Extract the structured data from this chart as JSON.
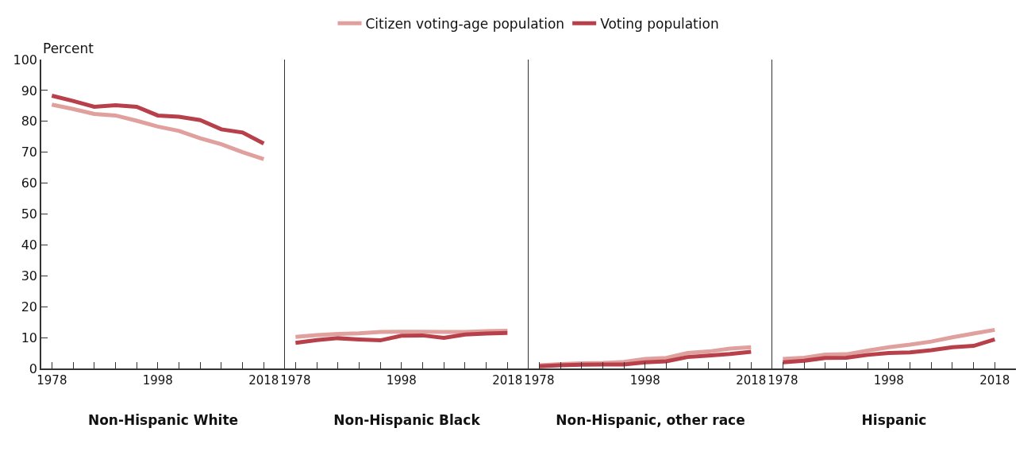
{
  "chart_data": [
    {
      "type": "line",
      "xlabel": "Non-Hispanic White",
      "ylabel": "Percent",
      "x": [
        1978,
        1982,
        1986,
        1990,
        1994,
        1998,
        2002,
        2006,
        2010,
        2014,
        2018
      ],
      "xlim": [
        1976,
        2022
      ],
      "xticks": [
        1978,
        {
          "value": 1982,
          "label": null
        },
        {
          "value": 1986,
          "label": null
        },
        {
          "value": 1990,
          "label": null
        },
        {
          "value": 1994,
          "label": null
        },
        1998,
        {
          "value": 2002,
          "label": null
        },
        {
          "value": 2006,
          "label": null
        },
        {
          "value": 2010,
          "label": null
        },
        {
          "value": 2014,
          "label": null
        },
        2018
      ],
      "ylim": [
        0,
        100
      ],
      "yticks": [
        0,
        10,
        20,
        30,
        40,
        50,
        60,
        70,
        80,
        90,
        100
      ],
      "legend": "top",
      "line_style": "solid",
      "marker": "none",
      "series": [
        {
          "name": "Citizen voting-age population",
          "color": "#e0a09e",
          "values": [
            85.4,
            84.0,
            82.4,
            81.9,
            80.2,
            78.3,
            76.9,
            74.5,
            72.6,
            70.0,
            67.8
          ]
        },
        {
          "name": "Voting population",
          "color": "#b8404a",
          "values": [
            88.3,
            86.6,
            84.7,
            85.2,
            84.7,
            81.9,
            81.5,
            80.4,
            77.4,
            76.4,
            72.8
          ]
        }
      ]
    },
    {
      "type": "line",
      "xlabel": "Non-Hispanic Black",
      "x": [
        1978,
        1982,
        1986,
        1990,
        1994,
        1998,
        2002,
        2006,
        2010,
        2014,
        2018
      ],
      "xlim": [
        1976,
        2022
      ],
      "xticks": [
        1978,
        {
          "value": 1982,
          "label": null
        },
        {
          "value": 1986,
          "label": null
        },
        {
          "value": 1990,
          "label": null
        },
        {
          "value": 1994,
          "label": null
        },
        1998,
        {
          "value": 2002,
          "label": null
        },
        {
          "value": 2006,
          "label": null
        },
        {
          "value": 2010,
          "label": null
        },
        {
          "value": 2014,
          "label": null
        },
        2018
      ],
      "ylim": [
        0,
        100
      ],
      "tick_labels": "x",
      "legend": "top",
      "line_style": "solid",
      "marker": "none",
      "series": [
        {
          "name": "Citizen voting-age population",
          "color": "#e0a09e",
          "values": [
            10.2,
            10.8,
            11.2,
            11.4,
            11.8,
            11.9,
            11.9,
            11.8,
            11.8,
            12.1,
            12.2
          ]
        },
        {
          "name": "Voting population",
          "color": "#b8404a",
          "values": [
            8.3,
            9.2,
            9.8,
            9.4,
            9.1,
            10.6,
            10.7,
            9.9,
            11.0,
            11.3,
            11.5
          ]
        }
      ]
    },
    {
      "type": "line",
      "xlabel": "Non-Hispanic, other race",
      "x": [
        1978,
        1982,
        1986,
        1990,
        1994,
        1998,
        2002,
        2006,
        2010,
        2014,
        2018
      ],
      "xlim": [
        1976,
        2022
      ],
      "xticks": [
        1978,
        {
          "value": 1982,
          "label": null
        },
        {
          "value": 1986,
          "label": null
        },
        {
          "value": 1990,
          "label": null
        },
        {
          "value": 1994,
          "label": null
        },
        1998,
        {
          "value": 2002,
          "label": null
        },
        {
          "value": 2006,
          "label": null
        },
        {
          "value": 2010,
          "label": null
        },
        {
          "value": 2014,
          "label": null
        },
        2018
      ],
      "ylim": [
        0,
        100
      ],
      "tick_labels": "x",
      "legend": "top",
      "line_style": "solid",
      "marker": "none",
      "series": [
        {
          "name": "Citizen voting-age population",
          "color": "#e0a09e",
          "values": [
            1.0,
            1.4,
            1.7,
            1.8,
            2.1,
            3.1,
            3.4,
            5.0,
            5.5,
            6.4,
            6.9
          ]
        },
        {
          "name": "Voting population",
          "color": "#b8404a",
          "values": [
            0.7,
            1.0,
            1.2,
            1.3,
            1.3,
            2.0,
            2.3,
            3.7,
            4.2,
            4.7,
            5.4
          ]
        }
      ]
    },
    {
      "type": "line",
      "xlabel": "Hispanic",
      "x": [
        1978,
        1982,
        1986,
        1990,
        1994,
        1998,
        2002,
        2006,
        2010,
        2014,
        2018
      ],
      "xlim": [
        1976,
        2022
      ],
      "xticks": [
        1978,
        {
          "value": 1982,
          "label": null
        },
        {
          "value": 1986,
          "label": null
        },
        {
          "value": 1990,
          "label": null
        },
        {
          "value": 1994,
          "label": null
        },
        1998,
        {
          "value": 2002,
          "label": null
        },
        {
          "value": 2006,
          "label": null
        },
        {
          "value": 2010,
          "label": null
        },
        {
          "value": 2014,
          "label": null
        },
        2018
      ],
      "ylim": [
        0,
        100
      ],
      "tick_labels": "x",
      "legend": "top",
      "line_style": "solid",
      "marker": "none",
      "series": [
        {
          "name": "Citizen voting-age population",
          "color": "#e0a09e",
          "values": [
            3.1,
            3.5,
            4.5,
            4.6,
            5.8,
            6.9,
            7.7,
            8.7,
            10.1,
            11.3,
            12.5
          ]
        },
        {
          "name": "Voting population",
          "color": "#b8404a",
          "values": [
            2.0,
            2.5,
            3.4,
            3.5,
            4.4,
            5.0,
            5.2,
            5.9,
            6.9,
            7.3,
            9.4
          ]
        }
      ]
    }
  ]
}
